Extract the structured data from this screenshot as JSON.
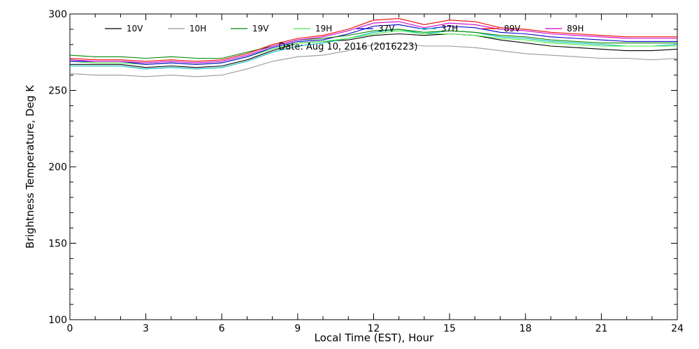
{
  "chart_data": {
    "type": "line",
    "title": "Date: Aug 10, 2016 (2016223)",
    "xlabel": "Local Time (EST), Hour",
    "ylabel": "Brightness Temperature, Deg K",
    "xlim": [
      0,
      24
    ],
    "ylim": [
      100,
      300
    ],
    "x_ticks": [
      0,
      3,
      6,
      9,
      12,
      15,
      18,
      21,
      24
    ],
    "y_ticks": [
      100,
      150,
      200,
      250,
      300
    ],
    "grid": false,
    "legend_position": "top",
    "x": [
      0,
      1,
      2,
      3,
      4,
      5,
      6,
      7,
      8,
      9,
      10,
      11,
      12,
      13,
      14,
      15,
      16,
      17,
      18,
      19,
      20,
      21,
      22,
      23,
      24
    ],
    "series": [
      {
        "name": "10V",
        "color": "#000000",
        "values": [
          267,
          267,
          267,
          265,
          266,
          265,
          266,
          270,
          276,
          281,
          282,
          283,
          286,
          287,
          286,
          287,
          286,
          283,
          281,
          279,
          278,
          277,
          276,
          276,
          277
        ]
      },
      {
        "name": "10H",
        "color": "#999999",
        "values": [
          261,
          260,
          260,
          259,
          260,
          259,
          260,
          264,
          269,
          272,
          273,
          276,
          280,
          281,
          279,
          279,
          278,
          276,
          274,
          273,
          272,
          271,
          271,
          270,
          271
        ]
      },
      {
        "name": "19V",
        "color": "#008800",
        "values": [
          273,
          272,
          272,
          271,
          272,
          271,
          271,
          275,
          279,
          283,
          284,
          286,
          289,
          290,
          288,
          289,
          288,
          286,
          285,
          283,
          282,
          281,
          281,
          281,
          281
        ]
      },
      {
        "name": "19H",
        "color": "#44ee44",
        "values": [
          269,
          268,
          268,
          267,
          268,
          267,
          268,
          272,
          277,
          281,
          282,
          284,
          287,
          289,
          287,
          287,
          286,
          284,
          283,
          281,
          280,
          279,
          279,
          279,
          279
        ]
      },
      {
        "name": "37V",
        "color": "#0000cc",
        "values": [
          269,
          269,
          269,
          267,
          268,
          267,
          268,
          272,
          278,
          282,
          283,
          287,
          292,
          293,
          290,
          292,
          291,
          288,
          287,
          285,
          284,
          283,
          282,
          282,
          282
        ]
      },
      {
        "name": "37H",
        "color": "#00bbbb",
        "values": [
          266,
          266,
          266,
          264,
          265,
          264,
          265,
          269,
          275,
          279,
          281,
          284,
          288,
          290,
          287,
          289,
          288,
          285,
          284,
          282,
          281,
          280,
          279,
          279,
          280
        ]
      },
      {
        "name": "89V",
        "color": "#ee0000",
        "values": [
          271,
          270,
          270,
          269,
          270,
          269,
          270,
          274,
          280,
          284,
          286,
          290,
          296,
          297,
          293,
          296,
          295,
          291,
          290,
          288,
          287,
          286,
          285,
          285,
          285
        ]
      },
      {
        "name": "89H",
        "color": "#cc00cc",
        "values": [
          270,
          269,
          269,
          268,
          269,
          268,
          269,
          273,
          279,
          283,
          285,
          289,
          294,
          295,
          291,
          294,
          293,
          290,
          289,
          287,
          286,
          285,
          284,
          284,
          284
        ]
      }
    ]
  }
}
